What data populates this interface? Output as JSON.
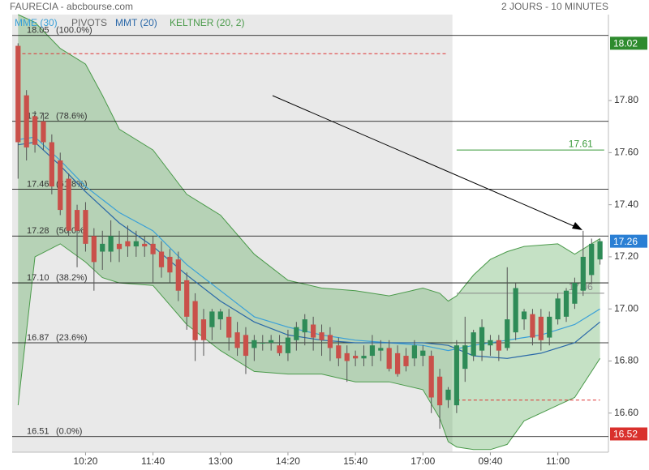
{
  "chart_data": {
    "type": "candlestick",
    "title": "FAURECIA - abcbourse.com",
    "subtitle": "2 JOURS - 10 MINUTES",
    "ylim": [
      16.45,
      18.13
    ],
    "yticks": [
      {
        "value": 17.8,
        "label": "17.80"
      },
      {
        "value": 17.6,
        "label": "17.60"
      },
      {
        "value": 17.4,
        "label": "17.40"
      },
      {
        "value": 17.2,
        "label": "17.20"
      },
      {
        "value": 17,
        "label": "17.00"
      },
      {
        "value": 16.8,
        "label": "16.80"
      },
      {
        "value": 16.6,
        "label": "16.60"
      }
    ],
    "xlim": [
      -0.7,
      70
    ],
    "xticks": [
      {
        "value": 8,
        "label": "10:20"
      },
      {
        "value": 16,
        "label": "11:40"
      },
      {
        "value": 24,
        "label": "13:00"
      },
      {
        "value": 32,
        "label": "14:20"
      },
      {
        "value": 40,
        "label": "15:40"
      },
      {
        "value": 48,
        "label": "17:00"
      },
      {
        "value": 56,
        "label": "09:40"
      },
      {
        "value": 64,
        "label": "11:00"
      }
    ],
    "up_color": "#2e8b57",
    "down_color": "#c9504a",
    "open": [
      18.01,
      17.82,
      17.74,
      17.72,
      17.64,
      17.57,
      17.5,
      17.38,
      17.38,
      17.28,
      17.22,
      17.22,
      17.25,
      17.26,
      17.24,
      17.25,
      17.25,
      17.22,
      17.2,
      17.19,
      17.11,
      17.03,
      16.96,
      16.93,
      16.96,
      16.97,
      16.91,
      16.9,
      16.85,
      16.87,
      16.87,
      16.86,
      16.83,
      16.88,
      16.91,
      16.94,
      16.91,
      16.9,
      16.86,
      16.83,
      16.82,
      16.81,
      16.82,
      16.84,
      16.85,
      16.83,
      16.82,
      16.81,
      16.82,
      16.82,
      16.74,
      16.65,
      16.63,
      16.77,
      16.82,
      16.84,
      16.86,
      16.88,
      16.85,
      16.91,
      16.96,
      16.98,
      16.97,
      16.89,
      16.96,
      16.97,
      17.02,
      17.07,
      17.13,
      17.19
    ],
    "high": [
      18.02,
      17.84,
      17.76,
      17.75,
      17.67,
      17.6,
      17.52,
      17.4,
      17.41,
      17.31,
      17.3,
      17.34,
      17.3,
      17.32,
      17.3,
      17.28,
      17.28,
      17.26,
      17.23,
      17.22,
      17.14,
      17.06,
      17.0,
      17.0,
      17.0,
      17.0,
      16.95,
      16.93,
      16.9,
      16.9,
      16.9,
      16.9,
      16.92,
      16.95,
      16.98,
      16.97,
      16.94,
      16.93,
      16.89,
      16.86,
      16.84,
      16.86,
      16.9,
      16.88,
      16.88,
      16.86,
      16.85,
      16.88,
      16.86,
      16.84,
      16.77,
      16.7,
      16.88,
      16.97,
      16.92,
      16.96,
      16.9,
      16.9,
      17.16,
      17.1,
      17.0,
      17.0,
      17.0,
      16.99,
      17.06,
      17.08,
      17.12,
      17.3,
      17.27,
      17.27
    ],
    "low": [
      17.5,
      17.57,
      17.6,
      17.61,
      17.44,
      17.36,
      17.28,
      17.16,
      17.22,
      17.07,
      17.15,
      17.18,
      17.18,
      17.2,
      17.2,
      17.2,
      17.1,
      17.12,
      17.1,
      17.03,
      16.92,
      16.8,
      16.82,
      16.88,
      16.92,
      16.84,
      16.82,
      16.75,
      16.8,
      16.84,
      16.84,
      16.82,
      16.8,
      16.84,
      16.86,
      16.84,
      16.82,
      16.8,
      16.78,
      16.72,
      16.78,
      16.78,
      16.78,
      16.8,
      16.76,
      16.74,
      16.76,
      16.78,
      16.78,
      16.6,
      16.54,
      16.62,
      16.6,
      16.72,
      16.8,
      16.8,
      16.82,
      16.8,
      16.84,
      16.88,
      16.92,
      16.86,
      16.84,
      16.86,
      16.94,
      16.95,
      17.0,
      17.05,
      17.1,
      17.17
    ],
    "close": [
      17.64,
      17.62,
      17.63,
      17.64,
      17.47,
      17.38,
      17.3,
      17.3,
      17.25,
      17.18,
      17.25,
      17.28,
      17.23,
      17.24,
      17.26,
      17.24,
      17.21,
      17.16,
      17.14,
      17.07,
      16.97,
      16.88,
      16.88,
      16.99,
      16.99,
      16.89,
      16.85,
      16.82,
      16.88,
      16.87,
      16.88,
      16.83,
      16.89,
      16.93,
      16.96,
      16.89,
      16.88,
      16.85,
      16.81,
      16.8,
      16.81,
      16.82,
      16.86,
      16.85,
      16.77,
      16.75,
      16.78,
      16.86,
      16.84,
      16.66,
      16.63,
      16.69,
      16.86,
      16.86,
      16.91,
      16.93,
      16.88,
      16.84,
      16.96,
      17.08,
      16.99,
      16.89,
      16.88,
      16.97,
      17.04,
      17.07,
      17.1,
      17.2,
      17.25,
      17.26
    ],
    "series": [
      {
        "name": "MME (30)",
        "color": "#3aa0d8",
        "x": [
          0,
          2,
          5,
          8,
          12,
          16,
          20,
          24,
          28,
          32,
          36,
          40,
          44,
          48,
          51,
          54,
          58,
          62,
          66,
          69
        ],
        "values": [
          17.65,
          17.66,
          17.57,
          17.47,
          17.37,
          17.3,
          17.17,
          17.07,
          16.97,
          16.93,
          16.9,
          16.88,
          16.87,
          16.86,
          16.84,
          16.86,
          16.88,
          16.9,
          16.94,
          17.0
        ]
      },
      {
        "name": "MMT (20)",
        "color": "#2a68a8",
        "x": [
          0,
          2,
          5,
          8,
          12,
          16,
          20,
          24,
          28,
          32,
          36,
          40,
          44,
          48,
          51,
          54,
          58,
          62,
          66,
          69
        ],
        "values": [
          17.63,
          17.64,
          17.55,
          17.45,
          17.33,
          17.24,
          17.13,
          17.03,
          16.95,
          16.9,
          16.88,
          16.87,
          16.87,
          16.87,
          16.86,
          16.82,
          16.81,
          16.83,
          16.87,
          16.95
        ]
      }
    ],
    "keltner": {
      "name": "KELTNER (20, 2)",
      "color": "#4a9a4a",
      "fill": "rgba(90,170,90,0.35)",
      "x": [
        0,
        2,
        5,
        8,
        10,
        12,
        16,
        20,
        24,
        28,
        32,
        36,
        40,
        44,
        48,
        50,
        51,
        52,
        54,
        56,
        58,
        60,
        64,
        66,
        69
      ],
      "upper": [
        18.13,
        18.1,
        18.0,
        17.94,
        17.82,
        17.69,
        17.61,
        17.44,
        17.36,
        17.21,
        17.11,
        17.08,
        17.07,
        17.05,
        17.08,
        17.06,
        17.03,
        17.05,
        17.13,
        17.19,
        17.22,
        17.24,
        17.25,
        17.21,
        17.27
      ],
      "lower": [
        16.63,
        17.2,
        17.25,
        17.18,
        17.12,
        17.1,
        17.09,
        16.94,
        16.84,
        16.76,
        16.75,
        16.75,
        16.72,
        16.72,
        16.69,
        16.58,
        16.49,
        16.47,
        16.46,
        16.46,
        16.48,
        16.57,
        16.63,
        16.66,
        16.81
      ]
    },
    "pivots": {
      "name": "PIVOTS",
      "color": "#d33",
      "lines": [
        {
          "value": 17.98,
          "xrange": [
            0.5,
            51
          ]
        },
        {
          "value": 16.65,
          "xrange": [
            52,
            69
          ]
        }
      ]
    },
    "retracements": [
      {
        "value": 18.05,
        "label": "18.05",
        "pct": "(100.0%)"
      },
      {
        "value": 17.72,
        "label": "17.72",
        "pct": "(78.6%)"
      },
      {
        "value": 17.46,
        "label": "17.46",
        "pct": "(61.8%)"
      },
      {
        "value": 17.28,
        "label": "17.28",
        "pct": "(50.0%)"
      },
      {
        "value": 17.1,
        "label": "17.10",
        "pct": "(38.2%)"
      },
      {
        "value": 16.87,
        "label": "16.87",
        "pct": "(23.6%)"
      },
      {
        "value": 16.51,
        "label": "16.51",
        "pct": "(0.0%)"
      }
    ],
    "levels": [
      {
        "value": 17.61,
        "color": "#3a9a3a",
        "xrange": [
          52,
          69.5
        ]
      },
      {
        "value": 17.06,
        "color": "#888",
        "xrange": [
          52,
          69.5
        ]
      }
    ],
    "price_badges": [
      {
        "value": 18.02,
        "color": "#2e8b2e"
      },
      {
        "value": 17.26,
        "color": "#2a7fd4"
      },
      {
        "value": 16.52,
        "color": "#d9302c"
      }
    ]
  }
}
